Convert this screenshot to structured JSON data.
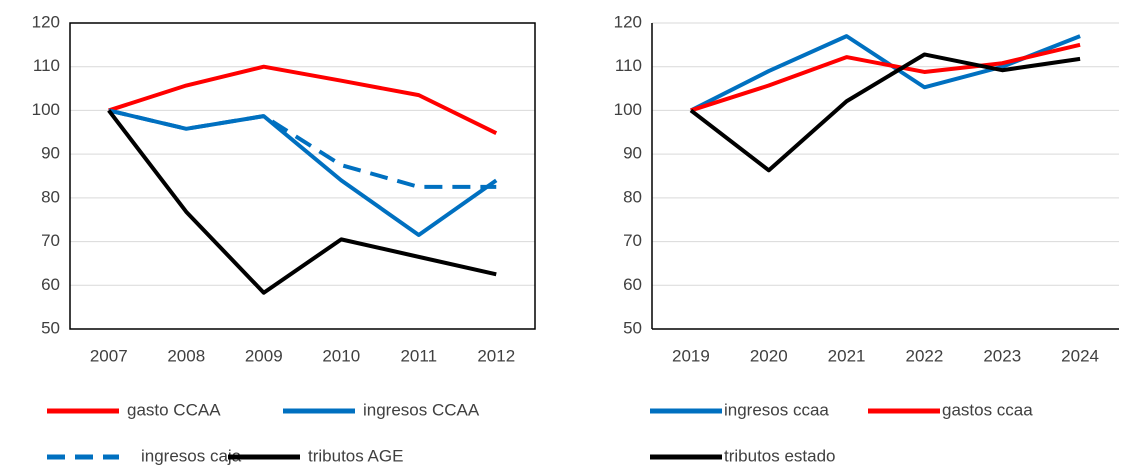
{
  "chart_data": [
    {
      "type": "line",
      "categories": [
        "2007",
        "2008",
        "2009",
        "2010",
        "2011",
        "2012"
      ],
      "ylim": [
        50,
        120
      ],
      "yticks": [
        50,
        60,
        70,
        80,
        90,
        100,
        110,
        120
      ],
      "grid": true,
      "frame": true,
      "series": [
        {
          "name": "gasto CCAA",
          "color": "#ff0000",
          "dashed": false,
          "values": [
            100,
            105.7,
            110,
            106.8,
            103.5,
            94.8
          ]
        },
        {
          "name": "ingresos CCAA",
          "color": "#0070c0",
          "dashed": false,
          "values": [
            100,
            95.8,
            98.7,
            84,
            71.5,
            84
          ]
        },
        {
          "name": "ingresos caja",
          "color": "#0070c0",
          "dashed": true,
          "values": [
            100,
            95.8,
            98.7,
            87.5,
            82.5,
            82.5
          ]
        },
        {
          "name": "tributos AGE",
          "color": "#000000",
          "dashed": false,
          "values": [
            100,
            76.8,
            58.3,
            70.5,
            66.5,
            62.5
          ]
        }
      ]
    },
    {
      "type": "line",
      "categories": [
        "2019",
        "2020",
        "2021",
        "2022",
        "2023",
        "2024"
      ],
      "ylim": [
        50,
        120
      ],
      "yticks": [
        50,
        60,
        70,
        80,
        90,
        100,
        110,
        120
      ],
      "grid": true,
      "frame": false,
      "series": [
        {
          "name": "ingresos ccaa",
          "color": "#0070c0",
          "dashed": false,
          "values": [
            100,
            109,
            117,
            105.3,
            110,
            117
          ]
        },
        {
          "name": "gastos ccaa",
          "color": "#ff0000",
          "dashed": false,
          "values": [
            100,
            105.7,
            112.2,
            108.8,
            110.8,
            115
          ]
        },
        {
          "name": "tributos estado",
          "color": "#000000",
          "dashed": false,
          "values": [
            100,
            86.3,
            102.1,
            112.8,
            109.2,
            111.8
          ]
        }
      ]
    }
  ]
}
